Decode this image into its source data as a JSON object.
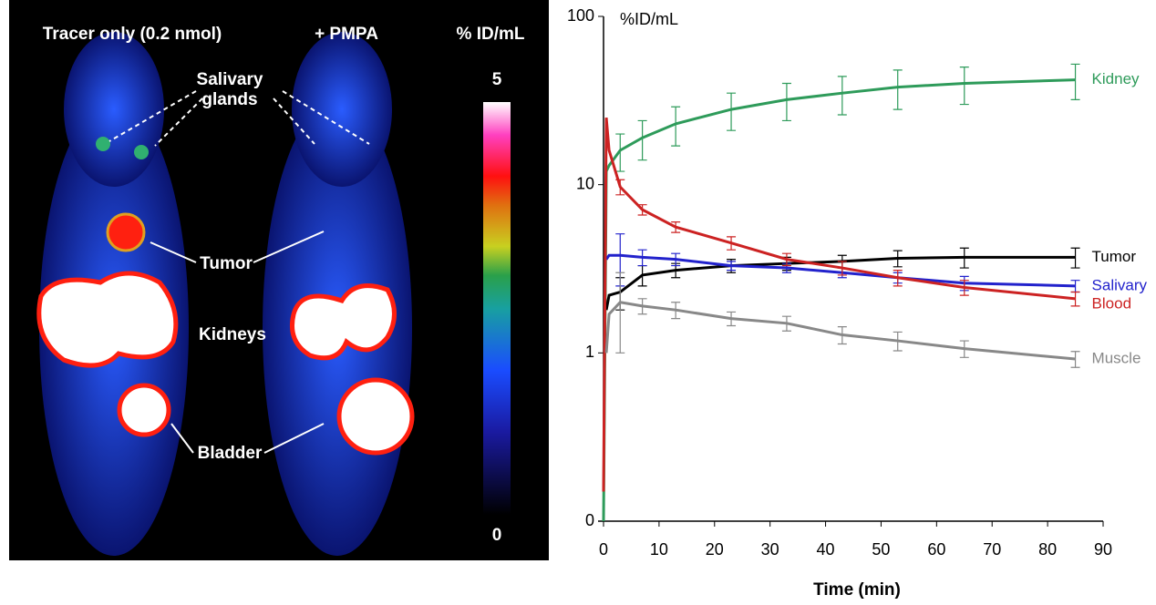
{
  "image_panel": {
    "titles": [
      "Tracer only (0.2 nmol)",
      "+ PMPA",
      "% ID/mL"
    ],
    "colorbar_max": "5",
    "colorbar_min": "0",
    "annotations": {
      "salivary": [
        "Salivary",
        "glands"
      ],
      "tumor": "Tumor",
      "kidneys": "Kidneys",
      "bladder": "Bladder"
    }
  },
  "chart_data": {
    "type": "line",
    "y_label": "%ID/mL",
    "x_label": "Time (min)",
    "log_scale_y": true,
    "x": [
      0,
      0.5,
      1,
      3,
      7,
      13,
      23,
      33,
      43,
      53,
      65,
      85
    ],
    "xlim": [
      0,
      90
    ],
    "xticks": [
      0,
      10,
      20,
      30,
      40,
      50,
      60,
      70,
      80,
      90
    ],
    "ylim": [
      0.1,
      100
    ],
    "yticks": [
      {
        "value": 0.1,
        "label": "0"
      },
      1,
      10,
      100
    ],
    "series": [
      {
        "name": "Kidney",
        "color": "#2e9b5a",
        "values": [
          0.1,
          12,
          13,
          16,
          19,
          23,
          28,
          32,
          35,
          38,
          40,
          42
        ],
        "errors": [
          null,
          null,
          null,
          4,
          5,
          6,
          7,
          8,
          9,
          10,
          10,
          10
        ]
      },
      {
        "name": "Tumor",
        "color": "#000000",
        "values": [
          null,
          1.8,
          2.2,
          2.3,
          2.9,
          3.1,
          3.3,
          3.4,
          3.5,
          3.65,
          3.7,
          3.7
        ],
        "errors": [
          null,
          null,
          null,
          0.5,
          0.4,
          0.3,
          0.3,
          0.3,
          0.3,
          0.4,
          0.5,
          0.5
        ]
      },
      {
        "name": "Salivary",
        "color": "#2222cc",
        "values": [
          null,
          3.6,
          3.8,
          3.8,
          3.7,
          3.6,
          3.3,
          3.2,
          3.0,
          2.8,
          2.6,
          2.5
        ],
        "errors": [
          null,
          null,
          null,
          1.3,
          0.4,
          0.3,
          0.2,
          0.2,
          0.2,
          0.2,
          0.25,
          0.2
        ]
      },
      {
        "name": "Blood",
        "color": "#cc2222",
        "values": [
          0.15,
          25,
          16,
          9.7,
          7.1,
          5.6,
          4.5,
          3.6,
          3.2,
          2.8,
          2.45,
          2.1
        ],
        "errors": [
          null,
          null,
          null,
          1,
          0.5,
          0.4,
          0.4,
          0.3,
          0.3,
          0.3,
          0.25,
          0.2
        ]
      },
      {
        "name": "Muscle",
        "color": "#888888",
        "values": [
          null,
          1.0,
          1.7,
          2.0,
          1.9,
          1.8,
          1.6,
          1.5,
          1.28,
          1.18,
          1.06,
          0.92
        ],
        "errors": [
          null,
          null,
          null,
          1.0,
          0.2,
          0.2,
          0.15,
          0.15,
          0.15,
          0.15,
          0.12,
          0.1
        ]
      }
    ]
  }
}
